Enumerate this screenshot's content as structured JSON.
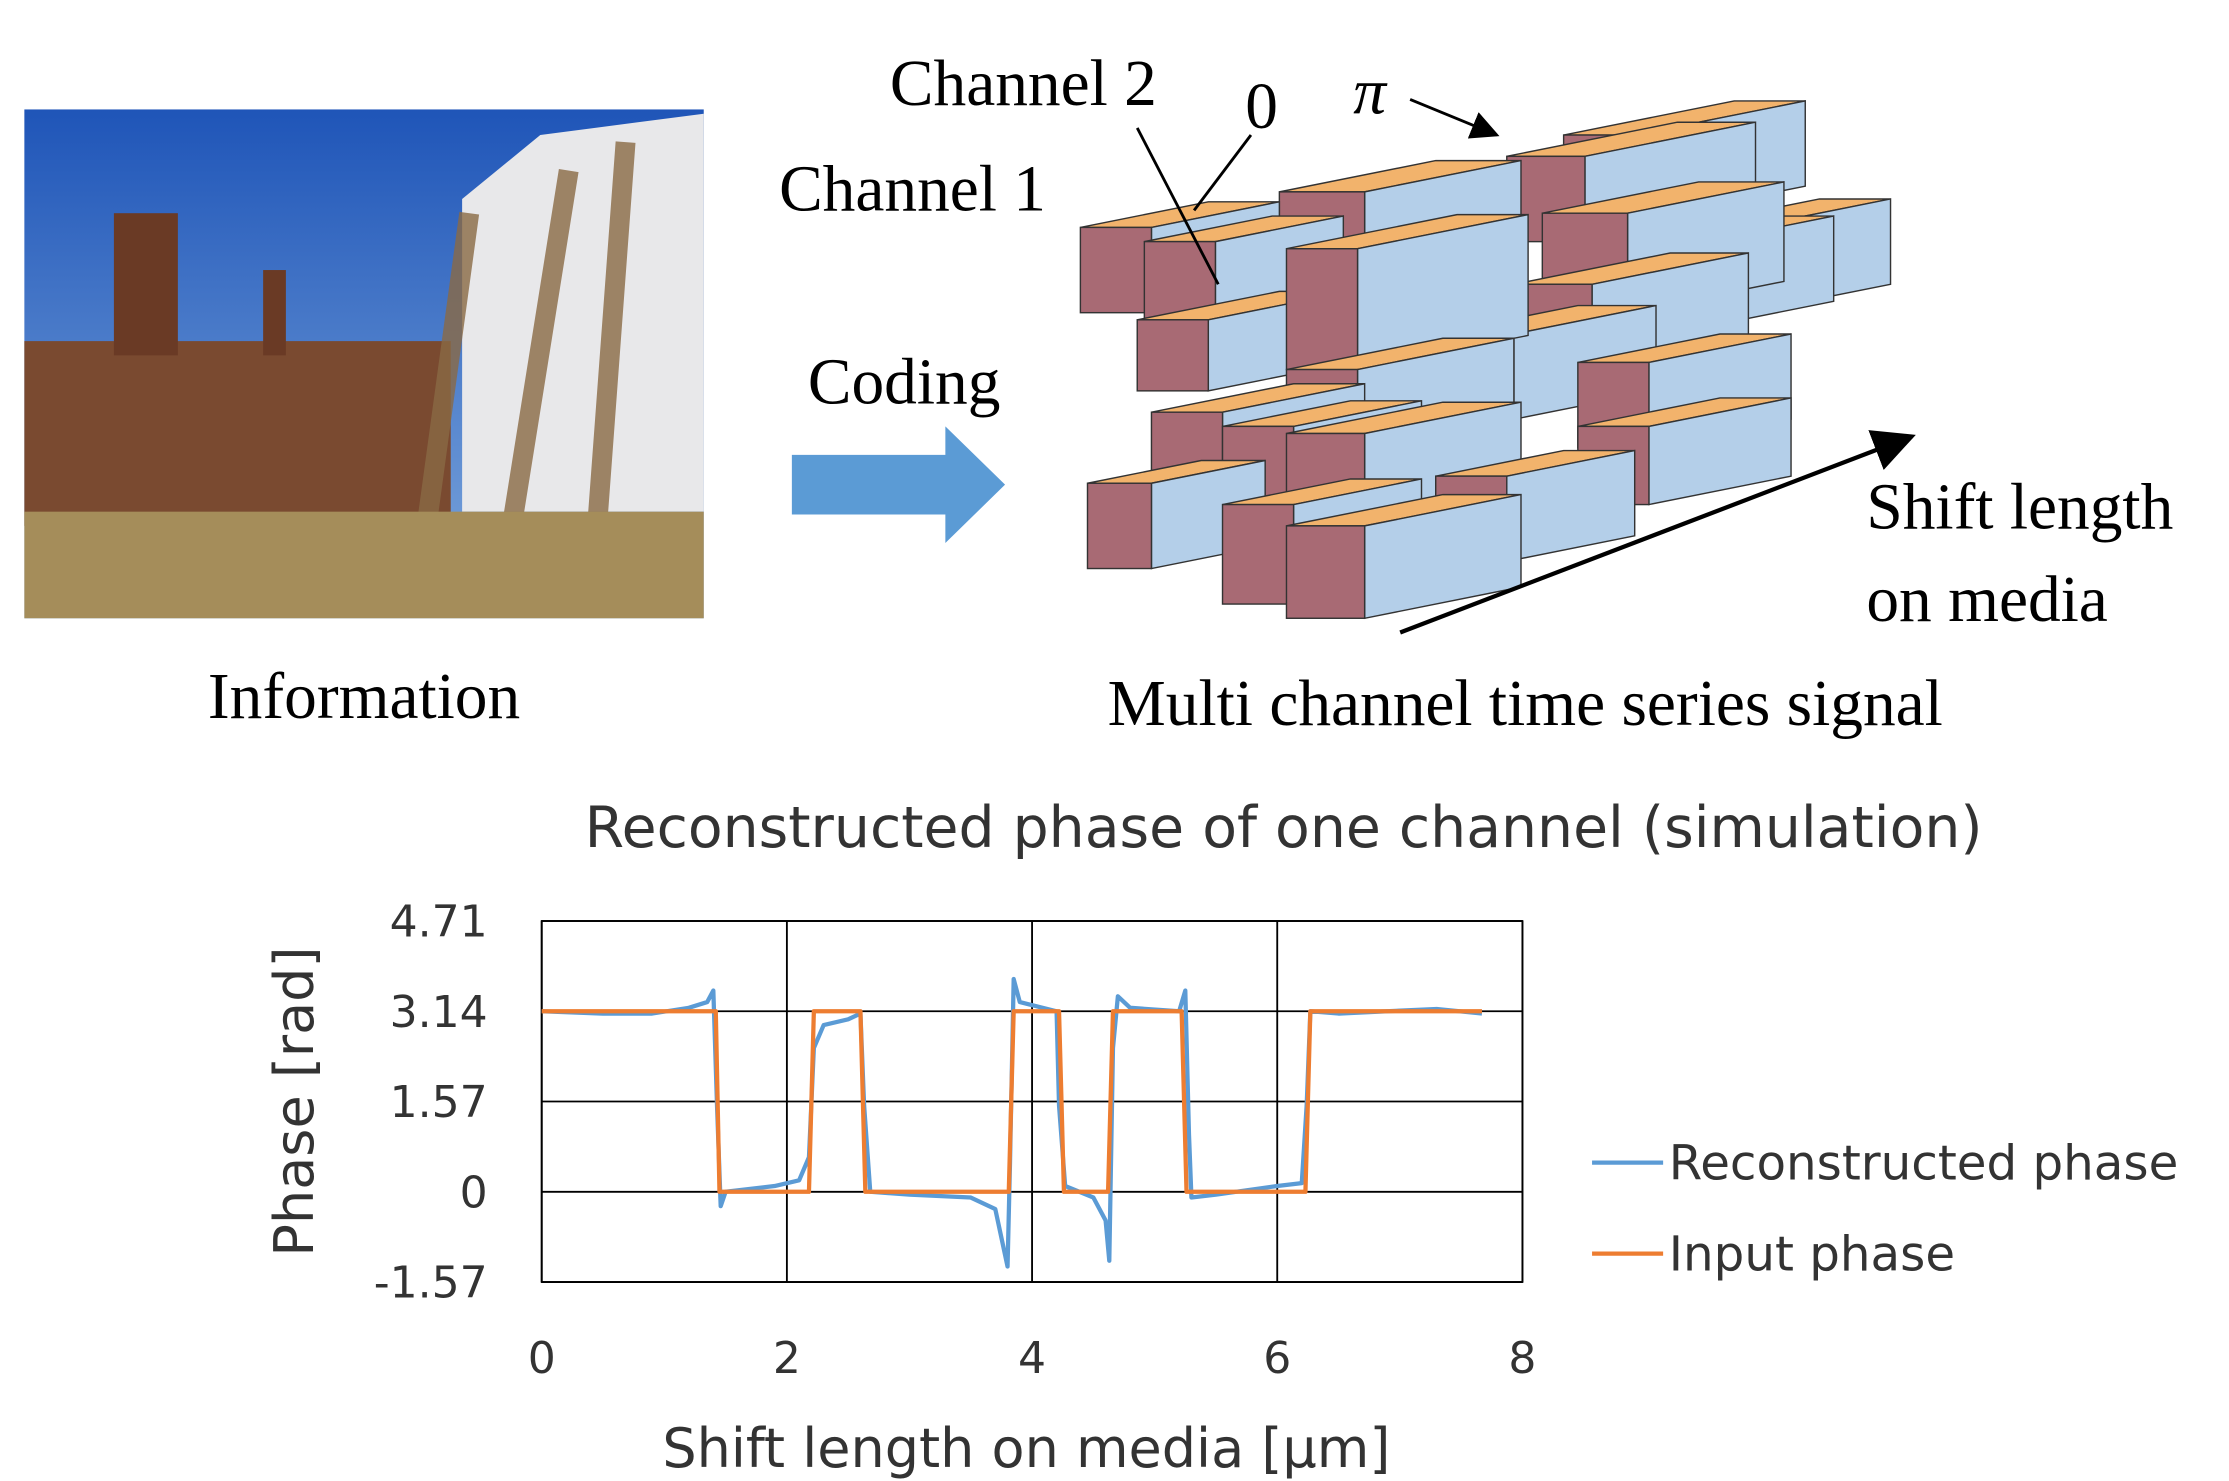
{
  "diagram": {
    "photo_caption": "Information",
    "coding": "Coding",
    "channel_1": "Channel 1",
    "channel_2": "Channel 2",
    "zero": "0",
    "pi": "π",
    "axis_label": [
      "Shift length",
      "on media"
    ],
    "signal_caption": "Multi channel time series signal"
  },
  "chart_data": {
    "type": "line",
    "title": "Reconstructed phase of one channel (simulation)",
    "x_label": "Shift length on media [μm]",
    "y_label": "Phase [rad]",
    "xlim": [
      0,
      8
    ],
    "xticks": [
      0,
      2,
      4,
      6,
      8
    ],
    "ylim": [
      -1.57,
      4.71
    ],
    "yticks": [
      4.71,
      3.14,
      1.57,
      0,
      -1.57
    ],
    "grid": true,
    "legend": "right",
    "series": [
      {
        "name": "Reconstructed phase",
        "color": "#5b9bd5",
        "x": [
          0,
          0.5,
          0.9,
          1.2,
          1.35,
          1.4,
          1.43,
          1.46,
          1.5,
          1.9,
          2.1,
          2.18,
          2.22,
          2.3,
          2.5,
          2.6,
          2.63,
          2.68,
          3.0,
          3.5,
          3.7,
          3.8,
          3.82,
          3.85,
          3.9,
          4.2,
          4.22,
          4.27,
          4.5,
          4.6,
          4.63,
          4.66,
          4.7,
          4.8,
          5.2,
          5.25,
          5.28,
          5.3,
          5.5,
          6.0,
          6.2,
          6.24,
          6.27,
          6.5,
          7.0,
          7.3,
          7.67
        ],
        "values": [
          3.14,
          3.1,
          3.1,
          3.2,
          3.3,
          3.5,
          1.5,
          -0.25,
          0,
          0.1,
          0.2,
          0.6,
          2.5,
          2.9,
          3.0,
          3.1,
          1.5,
          0,
          -0.05,
          -0.1,
          -0.3,
          -1.3,
          0.5,
          3.7,
          3.3,
          3.14,
          1.5,
          0.1,
          -0.1,
          -0.5,
          -1.2,
          2.5,
          3.4,
          3.2,
          3.14,
          3.5,
          1.0,
          -0.1,
          -0.05,
          0.1,
          0.15,
          1.5,
          3.14,
          3.1,
          3.15,
          3.18,
          3.1
        ]
      },
      {
        "name": "Input phase",
        "color": "#ed7d31",
        "x": [
          0,
          1.42,
          1.45,
          2.18,
          2.22,
          2.6,
          2.64,
          3.81,
          3.85,
          4.22,
          4.26,
          4.62,
          4.66,
          5.22,
          5.26,
          6.23,
          6.27,
          7.67
        ],
        "values": [
          3.14,
          3.14,
          0,
          0,
          3.14,
          3.14,
          0,
          0,
          3.14,
          3.14,
          0,
          0,
          3.14,
          3.14,
          0,
          0,
          3.14,
          3.14
        ]
      }
    ]
  }
}
